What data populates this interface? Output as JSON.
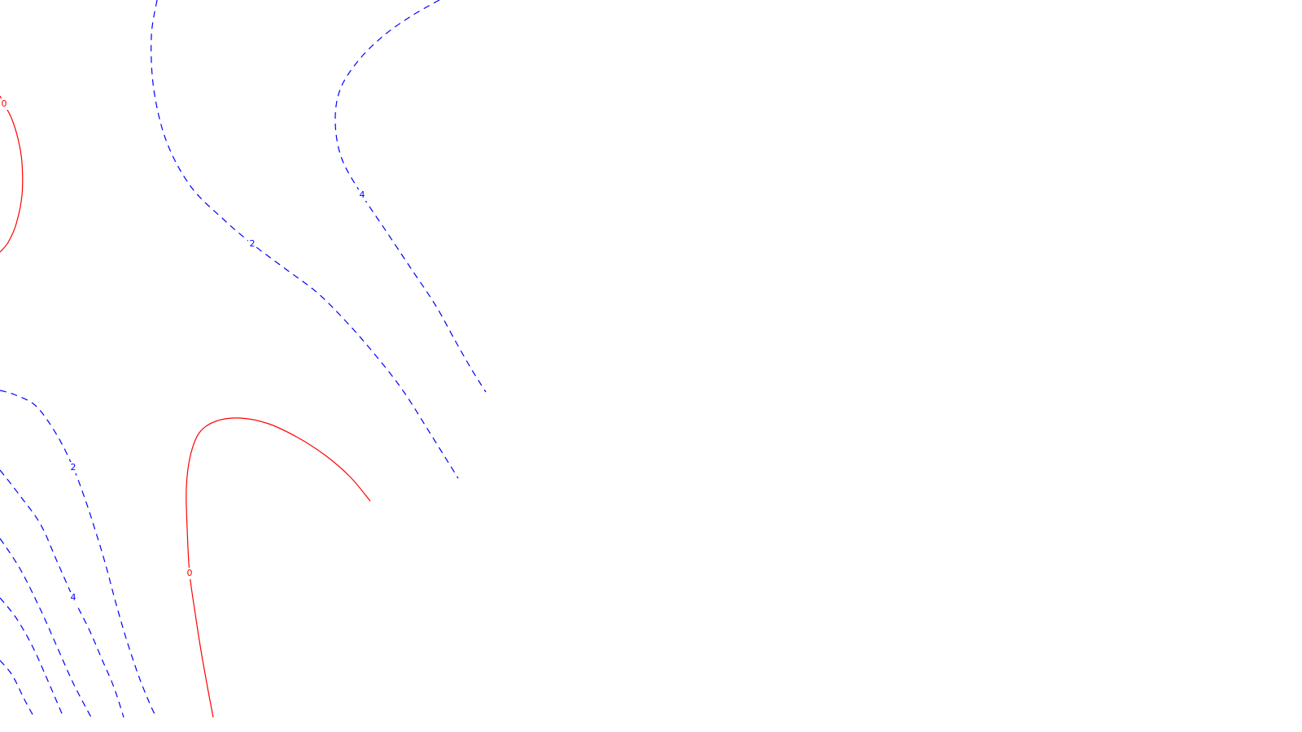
{
  "chart_data": {
    "type": "contour",
    "title": "",
    "xlabel": "",
    "ylabel": "",
    "legend": "none",
    "grid": false,
    "series": [
      {
        "level": "0",
        "style": "solid",
        "color": "#ff0000",
        "contours": [
          {
            "points": [
              [
                0,
                310
              ],
              [
                10,
                298
              ],
              [
                20,
                275
              ],
              [
                27,
                240
              ],
              [
                27,
                200
              ],
              [
                22,
                170
              ],
              [
                14,
                145
              ],
              [
                5,
                128
              ],
              [
                0,
                118
              ]
            ],
            "label": {
              "text": "0",
              "at": 7
            }
          },
          {
            "points": [
              [
                262,
                882
              ],
              [
                255,
                845
              ],
              [
                247,
                800
              ],
              [
                240,
                755
              ],
              [
                233,
                705
              ],
              [
                230,
                650
              ],
              [
                229,
                600
              ],
              [
                234,
                560
              ],
              [
                245,
                532
              ],
              [
                265,
                518
              ],
              [
                295,
                514
              ],
              [
                330,
                521
              ],
              [
                366,
                538
              ],
              [
                400,
                560
              ],
              [
                430,
                586
              ],
              [
                455,
                616
              ]
            ],
            "label": {
              "text": "0",
              "at": 4
            }
          }
        ]
      },
      {
        "level": "2",
        "style": "dashed",
        "color": "#0000ff",
        "contours": [
          {
            "points": [
              [
                193,
                0
              ],
              [
                186,
                45
              ],
              [
                189,
                110
              ],
              [
                205,
                175
              ],
              [
                235,
                230
              ],
              [
                275,
                270
              ],
              [
                310,
                300
              ],
              [
                350,
                330
              ],
              [
                390,
                360
              ],
              [
                425,
                395
              ],
              [
                460,
                435
              ],
              [
                495,
                480
              ],
              [
                530,
                535
              ],
              [
                563,
                588
              ]
            ],
            "label": {
              "text": "2",
              "at": 6
            }
          },
          {
            "points": [
              [
                0,
                480
              ],
              [
                20,
                486
              ],
              [
                45,
                500
              ],
              [
                70,
                535
              ],
              [
                90,
                575
              ],
              [
                105,
                615
              ],
              [
                118,
                655
              ],
              [
                130,
                695
              ],
              [
                142,
                740
              ],
              [
                155,
                785
              ],
              [
                170,
                830
              ],
              [
                184,
                865
              ],
              [
                192,
                882
              ]
            ],
            "label": {
              "text": "2",
              "at": 4
            }
          }
        ]
      },
      {
        "level": "4",
        "style": "dashed",
        "color": "#0000ff",
        "contours": [
          {
            "points": [
              [
                540,
                0
              ],
              [
                505,
                20
              ],
              [
                470,
                45
              ],
              [
                440,
                75
              ],
              [
                418,
                110
              ],
              [
                412,
                150
              ],
              [
                420,
                195
              ],
              [
                445,
                240
              ],
              [
                475,
                285
              ],
              [
                505,
                330
              ],
              [
                535,
                375
              ],
              [
                560,
                420
              ],
              [
                580,
                455
              ],
              [
                597,
                482
              ]
            ],
            "label": {
              "text": "4",
              "at": 7
            }
          },
          {
            "points": [
              [
                0,
                578
              ],
              [
                25,
                610
              ],
              [
                50,
                645
              ],
              [
                70,
                690
              ],
              [
                90,
                735
              ],
              [
                110,
                775
              ],
              [
                125,
                810
              ],
              [
                140,
                845
              ],
              [
                152,
                882
              ]
            ],
            "label": {
              "text": "4",
              "at": 4
            }
          }
        ]
      },
      {
        "level": "",
        "style": "dashed",
        "color": "#0000ff",
        "contours": [
          {
            "points": [
              [
                0,
                662
              ],
              [
                25,
                700
              ],
              [
                50,
                750
              ],
              [
                70,
                795
              ],
              [
                90,
                840
              ],
              [
                112,
                882
              ]
            ]
          },
          {
            "points": [
              [
                0,
                735
              ],
              [
                20,
                760
              ],
              [
                40,
                795
              ],
              [
                58,
                835
              ],
              [
                78,
                882
              ]
            ]
          },
          {
            "points": [
              [
                0,
                812
              ],
              [
                15,
                830
              ],
              [
                30,
                860
              ],
              [
                42,
                882
              ]
            ]
          }
        ]
      }
    ]
  }
}
